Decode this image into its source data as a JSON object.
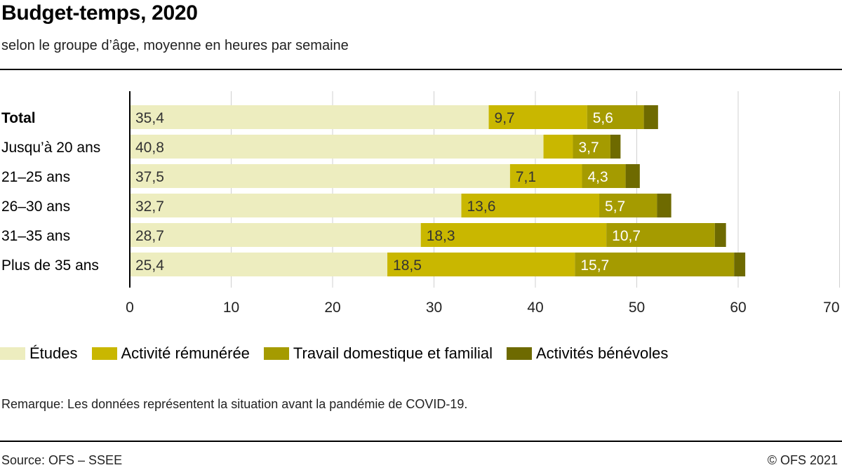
{
  "title": "Budget-temps, 2020",
  "subtitle": "selon le groupe d’âge, moyenne en heures par semaine",
  "remark": "Remarque: Les données représentent la situation avant la pandémie de COVID-19.",
  "source": "Source: OFS – SSEE",
  "copyright": "© OFS 2021",
  "colors": {
    "etudes": "#ededbf",
    "activite_remuneree": "#c9b700",
    "travail_domestique": "#a59b00",
    "activites_benevoles": "#6e6a00",
    "axis": "#000000",
    "grid": "#d0d0d0"
  },
  "chart_data": {
    "type": "bar",
    "orientation": "horizontal",
    "stacked": true,
    "categories": [
      "Total",
      "Jusqu’à 20 ans",
      "21–25 ans",
      "26–30 ans",
      "31–35 ans",
      "Plus de 35 ans"
    ],
    "bold_categories": [
      "Total"
    ],
    "series": [
      {
        "name": "Études",
        "color_key": "etudes",
        "values": [
          35.4,
          40.8,
          37.5,
          32.7,
          28.7,
          25.4
        ],
        "labels": [
          "35,4",
          "40,8",
          "37,5",
          "32,7",
          "28,7",
          "25,4"
        ]
      },
      {
        "name": "Activité rémunérée",
        "color_key": "activite_remuneree",
        "values": [
          9.7,
          2.9,
          7.1,
          13.6,
          18.3,
          18.5
        ],
        "labels": [
          "9,7",
          "",
          "7,1",
          "13,6",
          "18,3",
          "18,5"
        ]
      },
      {
        "name": "Travail domestique et familial",
        "color_key": "travail_domestique",
        "values": [
          5.6,
          3.7,
          4.3,
          5.7,
          10.7,
          15.7
        ],
        "labels": [
          "5,6",
          "3,7",
          "4,3",
          "5,7",
          "10,7",
          "15,7"
        ]
      },
      {
        "name": "Activités bénévoles",
        "color_key": "activites_benevoles",
        "values": [
          1.4,
          1.0,
          1.4,
          1.4,
          1.1,
          1.1
        ],
        "labels": [
          "",
          "",
          "",
          "",
          "",
          ""
        ]
      }
    ],
    "xlim": [
      0,
      70
    ],
    "xticks": [
      0,
      10,
      20,
      30,
      40,
      50,
      60,
      70
    ],
    "xtick_labels": [
      "0",
      "10",
      "20",
      "30",
      "40",
      "50",
      "60",
      "70"
    ],
    "grid": true,
    "legend": "bottom-left"
  }
}
